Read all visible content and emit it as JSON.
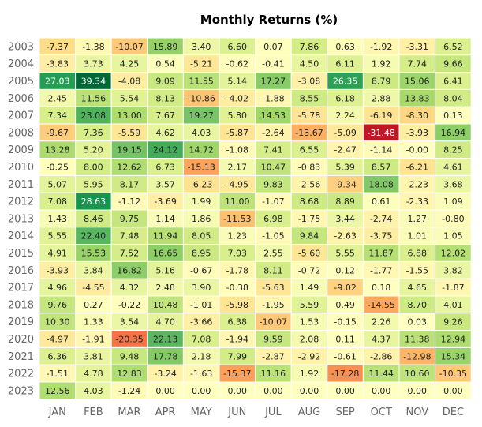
{
  "chart_data": {
    "type": "heatmap",
    "title": "Monthly Returns (%)",
    "xlabel": "",
    "ylabel": "",
    "columns": [
      "JAN",
      "FEB",
      "MAR",
      "APR",
      "MAY",
      "JUN",
      "JUL",
      "AUG",
      "SEP",
      "OCT",
      "NOV",
      "DEC"
    ],
    "rows": [
      "2003",
      "2004",
      "2005",
      "2006",
      "2007",
      "2008",
      "2009",
      "2010",
      "2011",
      "2012",
      "2013",
      "2014",
      "2015",
      "2016",
      "2017",
      "2018",
      "2019",
      "2020",
      "2021",
      "2022",
      "2023"
    ],
    "values": [
      [
        "-7.37",
        "-1.38",
        "-10.07",
        "15.89",
        "3.40",
        "6.60",
        "0.07",
        "7.86",
        "0.63",
        "-1.92",
        "-3.31",
        "6.52"
      ],
      [
        "-3.83",
        "3.73",
        "4.25",
        "0.54",
        "-5.21",
        "-0.62",
        "-0.41",
        "4.50",
        "6.11",
        "1.92",
        "7.74",
        "9.66"
      ],
      [
        "27.03",
        "39.34",
        "-4.08",
        "9.09",
        "11.55",
        "5.14",
        "17.27",
        "-3.08",
        "26.35",
        "8.79",
        "15.06",
        "6.41"
      ],
      [
        "2.45",
        "11.56",
        "5.54",
        "8.13",
        "-10.86",
        "-4.02",
        "-1.88",
        "8.55",
        "6.18",
        "2.88",
        "13.83",
        "8.04"
      ],
      [
        "7.34",
        "23.08",
        "13.00",
        "7.67",
        "19.27",
        "5.80",
        "14.53",
        "-5.78",
        "2.24",
        "-6.19",
        "-8.30",
        "0.13"
      ],
      [
        "-9.67",
        "7.36",
        "-5.59",
        "4.62",
        "4.03",
        "-5.87",
        "-2.64",
        "-13.67",
        "-5.09",
        "-31.48",
        "-3.93",
        "16.94"
      ],
      [
        "13.28",
        "5.20",
        "19.15",
        "24.12",
        "14.72",
        "-1.08",
        "7.41",
        "6.55",
        "-2.47",
        "-1.14",
        "-0.00",
        "8.25"
      ],
      [
        "-0.25",
        "8.00",
        "12.62",
        "6.73",
        "-15.13",
        "2.17",
        "10.47",
        "-0.83",
        "5.39",
        "8.57",
        "-6.21",
        "4.61"
      ],
      [
        "5.07",
        "5.95",
        "8.17",
        "3.57",
        "-6.23",
        "-4.95",
        "9.83",
        "-2.56",
        "-9.34",
        "18.08",
        "-2.23",
        "3.68"
      ],
      [
        "7.08",
        "28.63",
        "-1.12",
        "-3.69",
        "1.99",
        "11.00",
        "-1.07",
        "8.68",
        "8.89",
        "0.61",
        "-2.33",
        "1.09"
      ],
      [
        "1.43",
        "8.46",
        "9.75",
        "1.14",
        "1.86",
        "-11.53",
        "6.98",
        "-1.75",
        "3.44",
        "-2.74",
        "1.27",
        "-0.80"
      ],
      [
        "5.55",
        "22.40",
        "7.48",
        "11.94",
        "8.05",
        "1.23",
        "-1.05",
        "9.84",
        "-2.63",
        "-3.75",
        "1.01",
        "1.05"
      ],
      [
        "4.91",
        "15.53",
        "7.52",
        "16.65",
        "8.95",
        "7.03",
        "2.55",
        "-5.60",
        "5.55",
        "11.87",
        "6.88",
        "12.02"
      ],
      [
        "-3.93",
        "3.84",
        "16.82",
        "5.16",
        "-0.67",
        "-1.78",
        "8.11",
        "-0.72",
        "0.12",
        "-1.77",
        "-1.55",
        "3.82"
      ],
      [
        "4.96",
        "-4.55",
        "4.32",
        "2.48",
        "3.90",
        "-0.38",
        "-5.63",
        "1.49",
        "-9.02",
        "0.18",
        "4.65",
        "-1.87"
      ],
      [
        "9.76",
        "0.27",
        "-0.22",
        "10.48",
        "-1.01",
        "-5.98",
        "-1.95",
        "5.59",
        "0.49",
        "-14.55",
        "8.70",
        "4.01"
      ],
      [
        "10.30",
        "1.33",
        "3.54",
        "4.70",
        "-3.66",
        "6.38",
        "-10.07",
        "1.53",
        "-0.15",
        "2.26",
        "0.03",
        "9.26"
      ],
      [
        "-4.97",
        "-1.91",
        "-20.35",
        "22.13",
        "7.08",
        "-1.94",
        "9.59",
        "2.08",
        "0.11",
        "4.37",
        "11.38",
        "12.94"
      ],
      [
        "6.36",
        "3.81",
        "9.48",
        "17.78",
        "2.18",
        "7.99",
        "-2.87",
        "-2.92",
        "-0.61",
        "-2.86",
        "-12.98",
        "15.34"
      ],
      [
        "-1.51",
        "4.78",
        "12.83",
        "-3.24",
        "-1.63",
        "-15.37",
        "11.16",
        "1.92",
        "-17.28",
        "11.44",
        "10.60",
        "-10.35"
      ],
      [
        "12.56",
        "4.03",
        "-1.24",
        "0.00",
        "0.00",
        "0.00",
        "0.00",
        "0.00",
        "0.00",
        "0.00",
        "0.00",
        "0.00"
      ]
    ],
    "colormap": "RdYlGn",
    "color_scale": [
      -35,
      35
    ],
    "colors": {
      "negative_extreme": "#d73027",
      "neutral": "#ffffbf",
      "positive_extreme": "#1a9850"
    },
    "grid": false,
    "legend": "none"
  }
}
